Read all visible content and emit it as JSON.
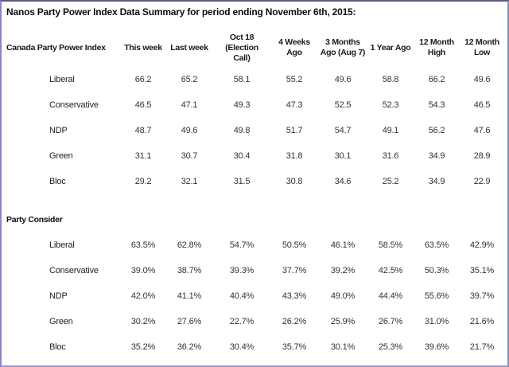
{
  "title": "Nanos Party Power Index Data Summary for period ending November 6th, 2015:",
  "colors": {
    "border": "#8888c7",
    "border_top": "#5c5c82",
    "title_text": "#0d0d0d",
    "value_text": "#333333",
    "background": "#ffffff"
  },
  "table": {
    "corner_label": "Canada Party Power Index",
    "columns": [
      {
        "l1": "This week",
        "l2": ""
      },
      {
        "l1": "Last week",
        "l2": ""
      },
      {
        "l1": "Oct 18 (Election",
        "l2": "Call)"
      },
      {
        "l1": "4 Weeks",
        "l2": "Ago"
      },
      {
        "l1": "3 Months",
        "l2": "Ago (Aug 7)"
      },
      {
        "l1": "1 Year Ago",
        "l2": ""
      },
      {
        "l1": "12 Month",
        "l2": "High"
      },
      {
        "l1": "12 Month",
        "l2": "Low"
      }
    ],
    "sections": [
      {
        "label": "",
        "rows": [
          {
            "party": "Liberal",
            "values": [
              "66.2",
              "65.2",
              "58.1",
              "55.2",
              "49.6",
              "58.8",
              "66.2",
              "49.6"
            ]
          },
          {
            "party": "Conservative",
            "values": [
              "46.5",
              "47.1",
              "49.3",
              "47.3",
              "52.5",
              "52.3",
              "54.3",
              "46.5"
            ]
          },
          {
            "party": "NDP",
            "values": [
              "48.7",
              "49.6",
              "49.8",
              "51.7",
              "54.7",
              "49.1",
              "56.2",
              "47.6"
            ]
          },
          {
            "party": "Green",
            "values": [
              "31.1",
              "30.7",
              "30.4",
              "31.8",
              "30.1",
              "31.6",
              "34.9",
              "28.9"
            ]
          },
          {
            "party": "Bloc",
            "values": [
              "29.2",
              "32.1",
              "31.5",
              "30.8",
              "34.6",
              "25.2",
              "34.9",
              "22.9"
            ]
          }
        ]
      },
      {
        "label": "Party Consider",
        "rows": [
          {
            "party": "Liberal",
            "values": [
              "63.5%",
              "62.8%",
              "54.7%",
              "50.5%",
              "46.1%",
              "58.5%",
              "63.5%",
              "42.9%"
            ]
          },
          {
            "party": "Conservative",
            "values": [
              "39.0%",
              "38.7%",
              "39.3%",
              "37.7%",
              "39.2%",
              "42.5%",
              "50.3%",
              "35.1%"
            ]
          },
          {
            "party": "NDP",
            "values": [
              "42.0%",
              "41.1%",
              "40.4%",
              "43.3%",
              "49.0%",
              "44.4%",
              "55.6%",
              "39.7%"
            ]
          },
          {
            "party": "Green",
            "values": [
              "30.2%",
              "27.6%",
              "22.7%",
              "26.2%",
              "25.9%",
              "26.7%",
              "31.0%",
              "21.6%"
            ]
          },
          {
            "party": "Bloc",
            "values": [
              "35.2%",
              "36.2%",
              "30.4%",
              "35.7%",
              "30.1%",
              "25.3%",
              "39.6%",
              "21.7%"
            ]
          }
        ]
      }
    ]
  }
}
